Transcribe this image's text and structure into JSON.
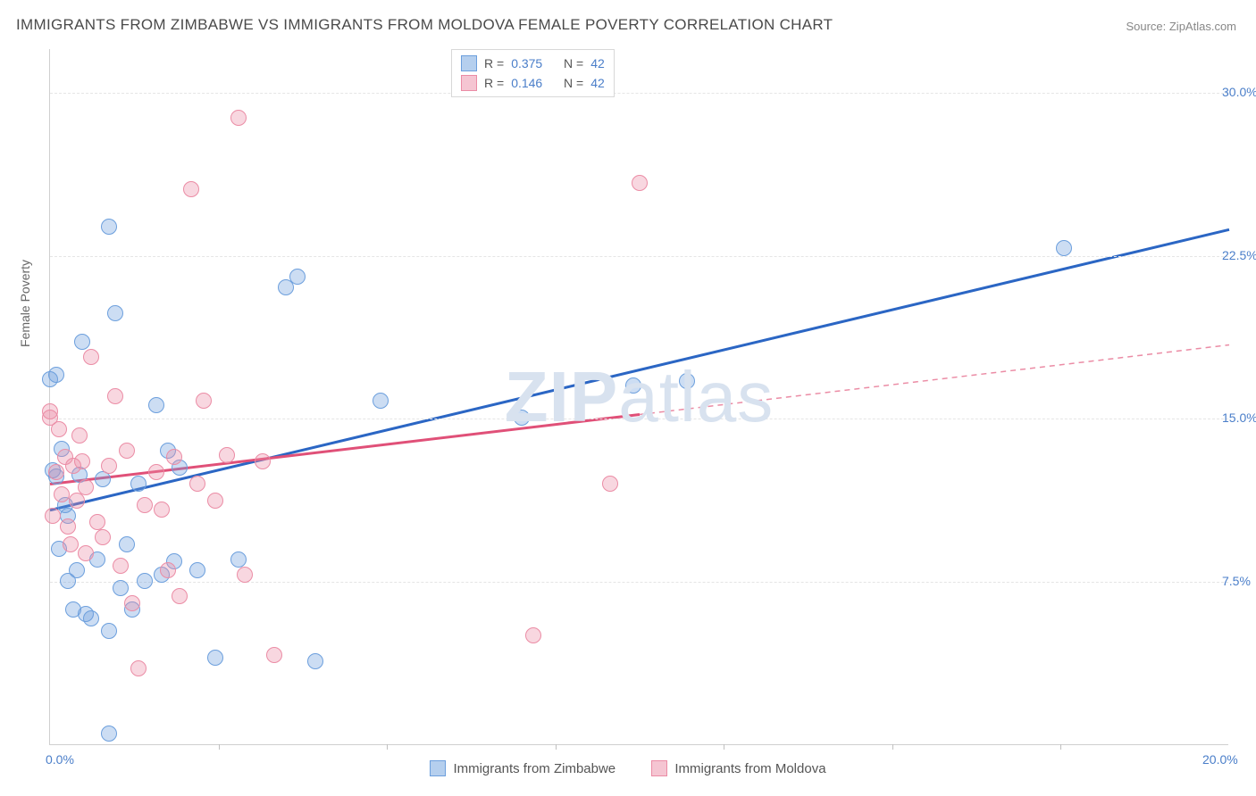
{
  "title": "IMMIGRANTS FROM ZIMBABWE VS IMMIGRANTS FROM MOLDOVA FEMALE POVERTY CORRELATION CHART",
  "source": "Source: ZipAtlas.com",
  "ylabel": "Female Poverty",
  "watermark_a": "ZIP",
  "watermark_b": "atlas",
  "chart": {
    "type": "scatter",
    "xlim": [
      0,
      20
    ],
    "ylim": [
      0,
      32
    ],
    "ytick_values": [
      7.5,
      15.0,
      22.5,
      30.0
    ],
    "ytick_labels": [
      "7.5%",
      "15.0%",
      "22.5%",
      "30.0%"
    ],
    "xtick_values": [
      0,
      20
    ],
    "xtick_labels": [
      "0.0%",
      "20.0%"
    ],
    "xtick_minor": [
      2.86,
      5.71,
      8.57,
      11.43,
      14.29,
      17.14
    ],
    "background_color": "#ffffff",
    "grid_color": "#e5e5e5",
    "axis_color": "#d0d0d0",
    "tick_label_color": "#4a7ec9",
    "series": [
      {
        "name": "Immigrants from Zimbabwe",
        "key": "zimbabwe",
        "color_fill": "rgba(108,159,221,0.35)",
        "color_stroke": "#6c9fdd",
        "marker_radius": 9,
        "trend": {
          "x1": 0,
          "y1": 10.8,
          "x2": 20,
          "y2": 23.7,
          "color": "#2b66c4",
          "width": 3,
          "dash": "none"
        },
        "r_value": "0.375",
        "n_value": "42",
        "points": [
          [
            0.0,
            16.8
          ],
          [
            0.05,
            12.6
          ],
          [
            0.1,
            17.0
          ],
          [
            0.1,
            12.3
          ],
          [
            0.15,
            9.0
          ],
          [
            0.2,
            13.6
          ],
          [
            0.25,
            11.0
          ],
          [
            0.3,
            10.5
          ],
          [
            0.3,
            7.5
          ],
          [
            0.4,
            6.2
          ],
          [
            0.45,
            8.0
          ],
          [
            0.5,
            12.4
          ],
          [
            0.55,
            18.5
          ],
          [
            0.6,
            6.0
          ],
          [
            0.7,
            5.8
          ],
          [
            0.8,
            8.5
          ],
          [
            0.9,
            12.2
          ],
          [
            1.0,
            23.8
          ],
          [
            1.0,
            5.2
          ],
          [
            1.1,
            19.8
          ],
          [
            1.2,
            7.2
          ],
          [
            1.3,
            9.2
          ],
          [
            1.4,
            6.2
          ],
          [
            1.5,
            12.0
          ],
          [
            1.6,
            7.5
          ],
          [
            1.8,
            15.6
          ],
          [
            1.9,
            7.8
          ],
          [
            2.0,
            13.5
          ],
          [
            2.1,
            8.4
          ],
          [
            2.2,
            12.7
          ],
          [
            2.5,
            8.0
          ],
          [
            2.8,
            4.0
          ],
          [
            3.2,
            8.5
          ],
          [
            4.0,
            21.0
          ],
          [
            4.2,
            21.5
          ],
          [
            4.5,
            3.8
          ],
          [
            5.6,
            15.8
          ],
          [
            8.0,
            15.0
          ],
          [
            9.9,
            16.5
          ],
          [
            10.8,
            16.7
          ],
          [
            17.2,
            22.8
          ],
          [
            1.0,
            0.5
          ]
        ]
      },
      {
        "name": "Immigrants from Moldova",
        "key": "moldova",
        "color_fill": "rgba(235,140,165,0.35)",
        "color_stroke": "#eb8ca5",
        "marker_radius": 9,
        "trend_solid": {
          "x1": 0,
          "y1": 12.0,
          "x2": 10,
          "y2": 15.2,
          "color": "#e05078",
          "width": 3
        },
        "trend_dash": {
          "x1": 10,
          "y1": 15.2,
          "x2": 20,
          "y2": 18.4,
          "color": "#eb8ca5",
          "width": 1.5
        },
        "r_value": "0.146",
        "n_value": "42",
        "points": [
          [
            0.0,
            15.0
          ],
          [
            0.05,
            10.5
          ],
          [
            0.1,
            12.5
          ],
          [
            0.15,
            14.5
          ],
          [
            0.2,
            11.5
          ],
          [
            0.25,
            13.2
          ],
          [
            0.3,
            10.0
          ],
          [
            0.35,
            9.2
          ],
          [
            0.4,
            12.8
          ],
          [
            0.45,
            11.2
          ],
          [
            0.5,
            14.2
          ],
          [
            0.55,
            13.0
          ],
          [
            0.6,
            11.8
          ],
          [
            0.7,
            17.8
          ],
          [
            0.8,
            10.2
          ],
          [
            0.9,
            9.5
          ],
          [
            1.0,
            12.8
          ],
          [
            1.1,
            16.0
          ],
          [
            1.2,
            8.2
          ],
          [
            1.3,
            13.5
          ],
          [
            1.4,
            6.5
          ],
          [
            1.5,
            3.5
          ],
          [
            1.6,
            11.0
          ],
          [
            1.8,
            12.5
          ],
          [
            1.9,
            10.8
          ],
          [
            2.0,
            8.0
          ],
          [
            2.1,
            13.2
          ],
          [
            2.2,
            6.8
          ],
          [
            2.4,
            25.5
          ],
          [
            2.5,
            12.0
          ],
          [
            2.6,
            15.8
          ],
          [
            2.8,
            11.2
          ],
          [
            3.0,
            13.3
          ],
          [
            3.2,
            28.8
          ],
          [
            3.3,
            7.8
          ],
          [
            3.6,
            13.0
          ],
          [
            3.8,
            4.1
          ],
          [
            8.2,
            5.0
          ],
          [
            9.5,
            12.0
          ],
          [
            10.0,
            25.8
          ],
          [
            0.0,
            15.3
          ],
          [
            0.6,
            8.8
          ]
        ]
      }
    ]
  },
  "legend_top": {
    "r_label": "R =",
    "n_label": "N ="
  },
  "legend_bottom": {
    "items": [
      {
        "label": "Immigrants from Zimbabwe",
        "fill": "rgba(108,159,221,0.5)",
        "stroke": "#6c9fdd"
      },
      {
        "label": "Immigrants from Moldova",
        "fill": "rgba(235,140,165,0.5)",
        "stroke": "#eb8ca5"
      }
    ]
  }
}
